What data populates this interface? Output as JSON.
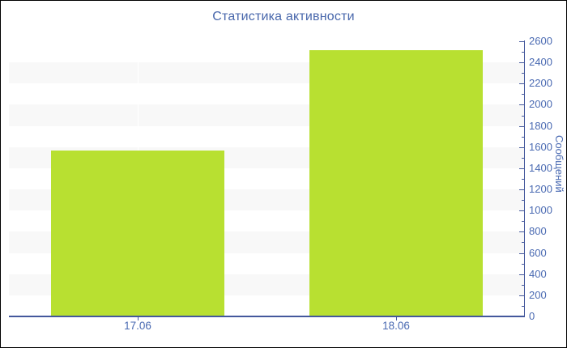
{
  "chart_data": {
    "type": "bar",
    "title": "Статистика активности",
    "categories": [
      "17.06",
      "18.06"
    ],
    "values": [
      1570,
      2515
    ],
    "xlabel": "",
    "ylabel": "Сообщений",
    "ylim": [
      0,
      2600
    ],
    "ytick_major": 200,
    "ytick_minor": 100,
    "legend": "none",
    "grid": "alternating-horizontal-bands",
    "yaxis_side": "right",
    "colors": {
      "bar": "#b8e031",
      "stripe": "#f8f8f8",
      "axis": "#44589c",
      "title_text": "#4766ab",
      "tick_text": "#4a6ab2",
      "background": "#ffffff",
      "border": "#000000"
    }
  }
}
